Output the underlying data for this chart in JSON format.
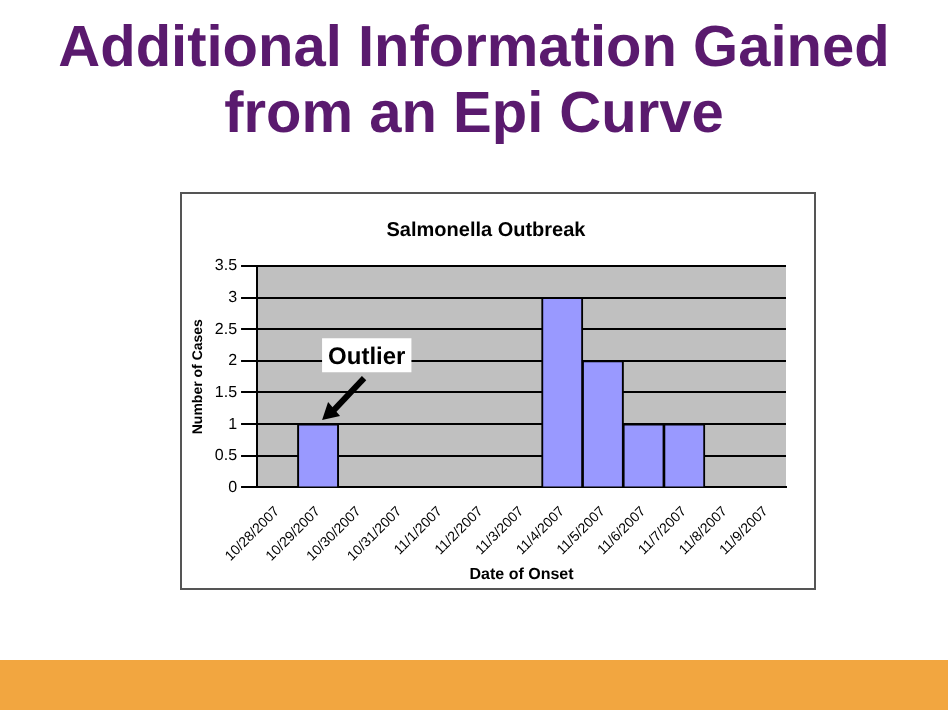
{
  "chart_data": {
    "type": "bar",
    "title": "Additional Information Gained from an Epi Curve",
    "subtitle": "Salmonella Outbreak",
    "xlabel": "Date of Onset",
    "ylabel": "Number of Cases",
    "categories": [
      "10/28/2007",
      "10/29/2007",
      "10/30/2007",
      "10/31/2007",
      "11/1/2007",
      "11/2/2007",
      "11/3/2007",
      "11/4/2007",
      "11/5/2007",
      "11/6/2007",
      "11/7/2007",
      "11/8/2007",
      "11/9/2007"
    ],
    "values": [
      0,
      1,
      0,
      0,
      0,
      0,
      0,
      3,
      2,
      1,
      1,
      0,
      0
    ],
    "color": "#9999ff",
    "ylim": [
      0,
      3.5
    ],
    "yticks": [
      0,
      0.5,
      1,
      1.5,
      2,
      2.5,
      3,
      3.5
    ],
    "grid": "y",
    "legend": false,
    "annotations": [
      {
        "text": "Outlier",
        "x": "10/29/2007",
        "y": 1
      }
    ]
  }
}
